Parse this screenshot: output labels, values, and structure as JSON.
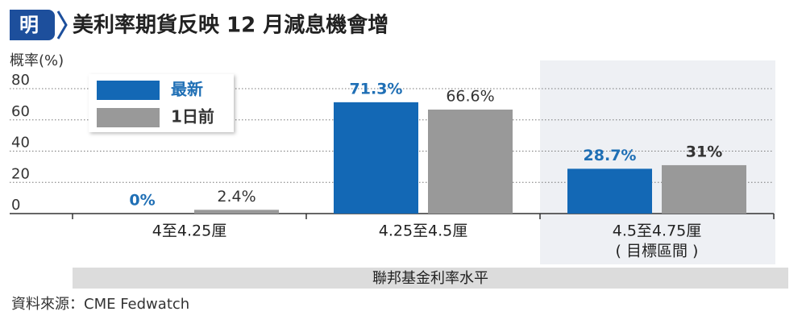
{
  "logo": "明",
  "chart_data": {
    "type": "bar",
    "title": "美利率期貨反映 12 月減息機會增",
    "y_label": "概率(%)",
    "x_label": "聯邦基金利率水平",
    "source": "資料來源：CME Fedwatch",
    "highlight_note": "( 目標區間 )",
    "categories": [
      "4至4.25厘",
      "4.25至4.5厘",
      "4.5至4.75厘"
    ],
    "series": [
      {
        "name": "最新",
        "color": "#1368b5",
        "label_color": "#1f6fb5",
        "values": [
          0,
          71.3,
          28.7
        ],
        "value_labels": [
          "0%",
          "71.3%",
          "28.7%"
        ]
      },
      {
        "name": "1日前",
        "color": "#999999",
        "label_color": "#333333",
        "values": [
          2.4,
          66.6,
          31
        ],
        "value_labels": [
          "2.4%",
          "66.6%",
          "31%"
        ]
      }
    ],
    "ylim": [
      0,
      80
    ],
    "yticks": [
      0,
      20,
      40,
      60,
      80
    ],
    "grid": true,
    "legend": "top-left",
    "highlight_category": 2
  }
}
